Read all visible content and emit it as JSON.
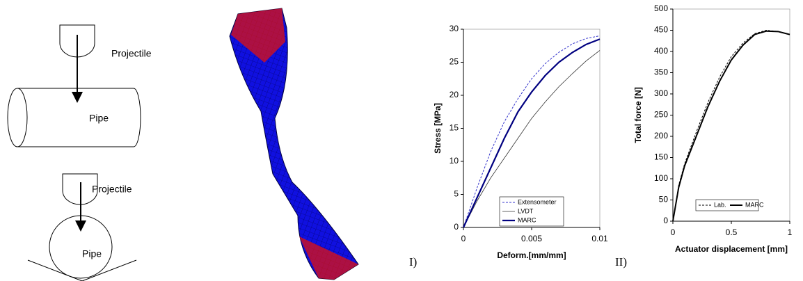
{
  "diagram": {
    "top_projectile": "Projectile",
    "top_pipe": "Pipe",
    "bottom_projectile": "Projectile",
    "bottom_pipe": "Pipe"
  },
  "panel_labels": [
    "I)",
    "II)"
  ],
  "chart_data": [
    {
      "type": "line",
      "xlabel": "Deform.[mm/mm]",
      "ylabel": "Stress [MPa]",
      "x": [
        0,
        0.001,
        0.002,
        0.003,
        0.004,
        0.005,
        0.006,
        0.007,
        0.008,
        0.009,
        0.01
      ],
      "series": [
        {
          "name": "Extensometer",
          "color": "#3333cc",
          "dash": "dotted",
          "width": 1,
          "values": [
            0,
            6,
            11.5,
            16,
            19.5,
            22.5,
            24.8,
            26.5,
            27.8,
            28.6,
            29
          ]
        },
        {
          "name": "LVDT",
          "color": "#333333",
          "dash": "solid",
          "width": 0.8,
          "values": [
            0,
            4,
            7.5,
            10.5,
            13.5,
            16.5,
            19,
            21.3,
            23.3,
            25.2,
            26.8
          ]
        },
        {
          "name": "MARC",
          "color": "#000080",
          "dash": "solid",
          "width": 2.2,
          "values": [
            0,
            4.5,
            9,
            13.5,
            17.5,
            20.5,
            23,
            25,
            26.5,
            27.7,
            28.5
          ]
        }
      ],
      "xlim": [
        0,
        0.01
      ],
      "xticks": [
        0,
        0.005,
        0.01
      ],
      "ylim": [
        0,
        30
      ],
      "yticks": [
        0,
        5,
        10,
        15,
        20,
        25,
        30
      ],
      "legend": "lower right",
      "legend_columns": 1
    },
    {
      "type": "line",
      "xlabel": "Actuator displacement [mm]",
      "ylabel": "Total force [N]",
      "x": [
        0,
        0.05,
        0.1,
        0.2,
        0.3,
        0.4,
        0.5,
        0.6,
        0.7,
        0.8,
        0.9,
        1
      ],
      "series": [
        {
          "name": "Lab.",
          "color": "#000000",
          "dash": "dotted",
          "width": 1,
          "values": [
            0,
            85,
            135,
            210,
            280,
            340,
            388,
            420,
            442,
            450,
            447,
            440
          ]
        },
        {
          "name": "MARC",
          "color": "#000000",
          "dash": "solid",
          "width": 2,
          "values": [
            0,
            80,
            130,
            200,
            270,
            330,
            380,
            415,
            440,
            448,
            447,
            440
          ]
        }
      ],
      "xlim": [
        0,
        1
      ],
      "xticks": [
        0,
        0.5,
        1
      ],
      "ylim": [
        0,
        500
      ],
      "yticks": [
        0,
        50,
        100,
        150,
        200,
        250,
        300,
        350,
        400,
        450,
        500
      ],
      "legend": "lower center",
      "legend_columns": 2
    }
  ]
}
